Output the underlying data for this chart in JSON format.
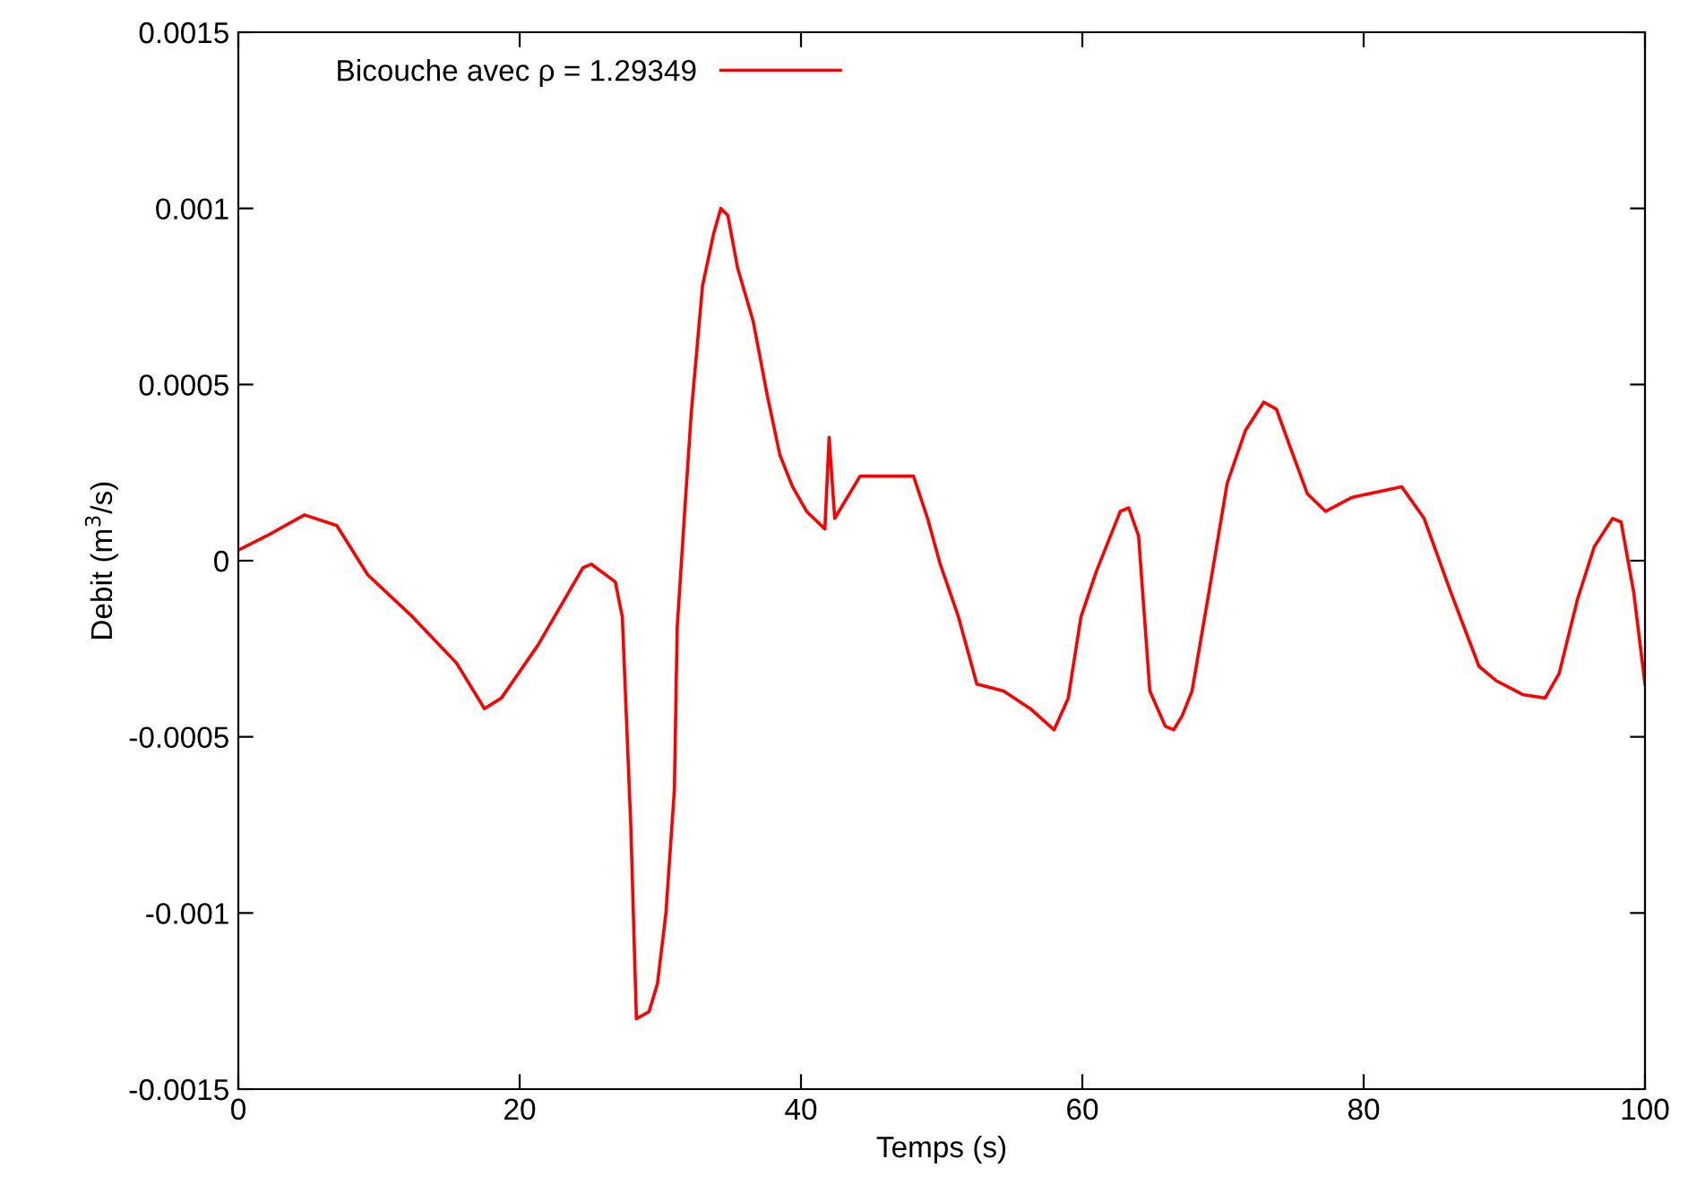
{
  "chart_data": {
    "type": "line",
    "xlabel": "Temps (s)",
    "ylabel": "Debit (m$^{3}$/s)",
    "xlim": [
      0,
      100
    ],
    "ylim": [
      -0.0015,
      0.0015
    ],
    "xticks": [
      0,
      20,
      40,
      60,
      80,
      100
    ],
    "yticks": [
      -0.0015,
      -0.001,
      -0.0005,
      0,
      0.0005,
      0.001,
      0.0015
    ],
    "grid": false,
    "legend": "top left",
    "marker": "none",
    "line_style": "solid",
    "series": [
      {
        "name": "Bicouche avec ρ = 1.29349",
        "color": "#ff0000",
        "x": [
          0,
          2,
          4.7,
          7,
          9.2,
          12.4,
          15.5,
          17.5,
          18.7,
          21.3,
          24.5,
          25.1,
          26.8,
          27.3,
          27.9,
          28.3,
          29.2,
          29.8,
          30.4,
          31,
          31.2,
          31.7,
          32.2,
          33,
          33.8,
          34.3,
          34.8,
          35.5,
          36.6,
          37.6,
          38.5,
          39.4,
          40.4,
          41.7,
          42,
          42.4,
          44.2,
          46.8,
          48,
          49,
          49.9,
          51.2,
          52.5,
          54.4,
          56.3,
          58,
          59,
          59.9,
          61,
          62.7,
          63.3,
          64,
          64.8,
          65.9,
          66.5,
          67.1,
          67.8,
          69,
          70.3,
          71.6,
          72.9,
          73.8,
          74.8,
          76,
          77.3,
          79.2,
          82.7,
          84.3,
          86.2,
          88.2,
          89.4,
          91.3,
          92.9,
          93.9,
          95.2,
          96.4,
          97.7,
          98.3,
          99.2,
          100
        ],
        "values": [
          3e-05,
          7e-05,
          0.00013,
          0.0001,
          -4e-05,
          -0.00016,
          -0.00029,
          -0.00042,
          -0.00039,
          -0.00024,
          -2e-05,
          -1e-05,
          -6e-05,
          -0.00016,
          -0.00075,
          -0.0013,
          -0.00128,
          -0.0012,
          -0.001,
          -0.00065,
          -0.00019,
          0.00012,
          0.00042,
          0.00078,
          0.00093,
          0.001,
          0.00098,
          0.00083,
          0.00068,
          0.00047,
          0.0003,
          0.00021,
          0.00014,
          9e-05,
          0.00035,
          0.00012,
          0.00024,
          0.00024,
          0.00024,
          0.00012,
          -1e-05,
          -0.00016,
          -0.00035,
          -0.00037,
          -0.00042,
          -0.00048,
          -0.00039,
          -0.00016,
          -3e-05,
          0.00014,
          0.00015,
          7e-05,
          -0.00037,
          -0.00047,
          -0.00048,
          -0.00044,
          -0.00037,
          -9e-05,
          0.00022,
          0.00037,
          0.00045,
          0.00043,
          0.00032,
          0.00019,
          0.00014,
          0.00018,
          0.00021,
          0.00012,
          -9e-05,
          -0.0003,
          -0.00034,
          -0.00038,
          -0.00039,
          -0.00032,
          -0.00011,
          4e-05,
          0.00012,
          0.00011,
          -9e-05,
          -0.00035
        ]
      }
    ]
  }
}
